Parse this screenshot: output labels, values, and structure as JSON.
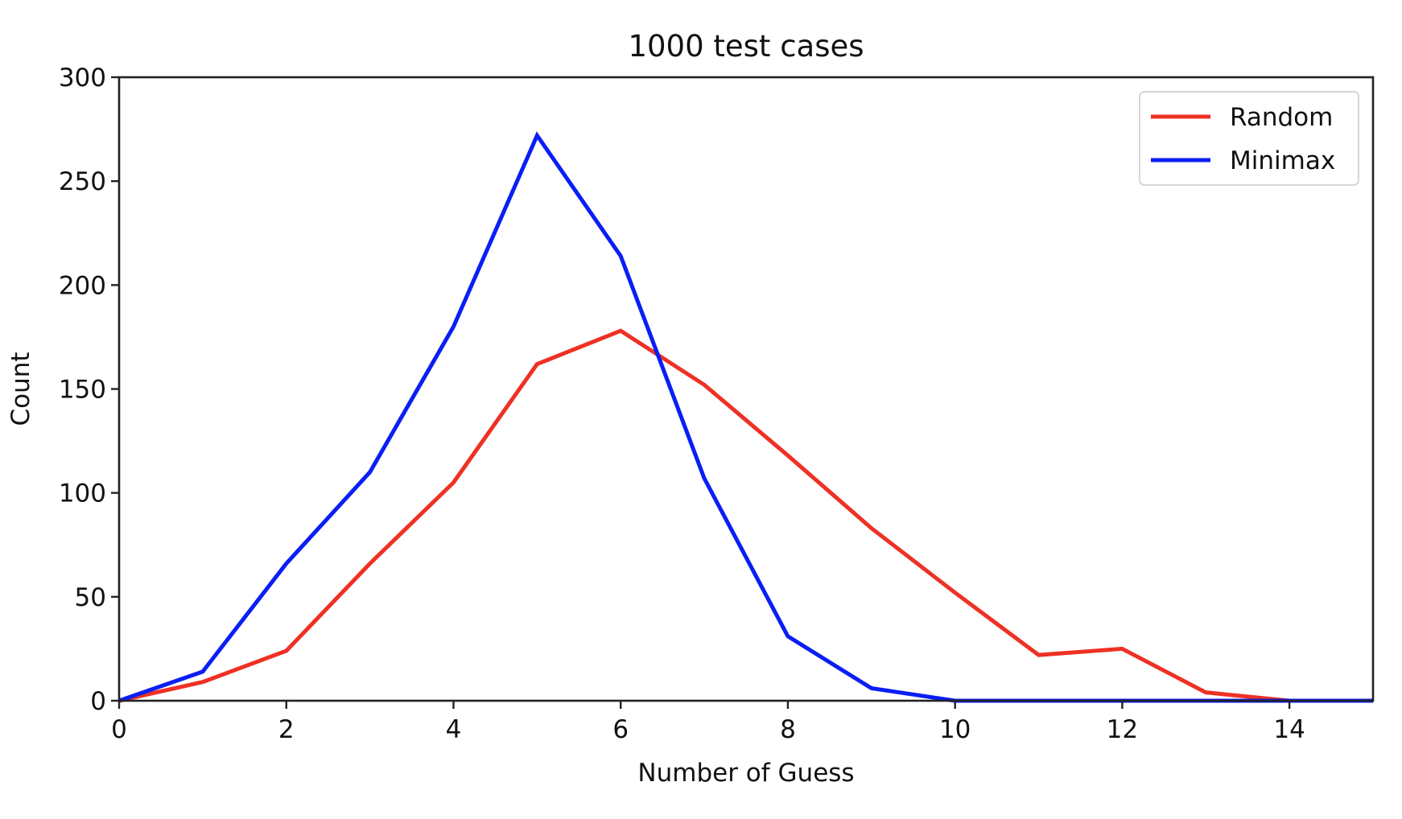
{
  "chart_data": {
    "type": "line",
    "title": "1000 test cases",
    "xlabel": "Number of Guess",
    "ylabel": "Count",
    "xlim": [
      0,
      15
    ],
    "ylim": [
      0,
      300
    ],
    "xticks": [
      0,
      2,
      4,
      6,
      8,
      10,
      12,
      14
    ],
    "yticks": [
      0,
      50,
      100,
      150,
      200,
      250,
      300
    ],
    "grid": false,
    "legend_position": "top-right",
    "x": [
      0,
      1,
      2,
      3,
      4,
      5,
      6,
      7,
      8,
      9,
      10,
      11,
      12,
      13,
      14,
      15
    ],
    "series": [
      {
        "name": "Random",
        "color": "#ee3124",
        "values": [
          0,
          9,
          24,
          66,
          105,
          162,
          178,
          152,
          118,
          83,
          52,
          22,
          25,
          4,
          0,
          0
        ]
      },
      {
        "name": "Minimax",
        "color": "#0a1ef5",
        "values": [
          0,
          14,
          66,
          110,
          180,
          272,
          214,
          107,
          31,
          6,
          0,
          0,
          0,
          0,
          0,
          0
        ]
      }
    ]
  }
}
